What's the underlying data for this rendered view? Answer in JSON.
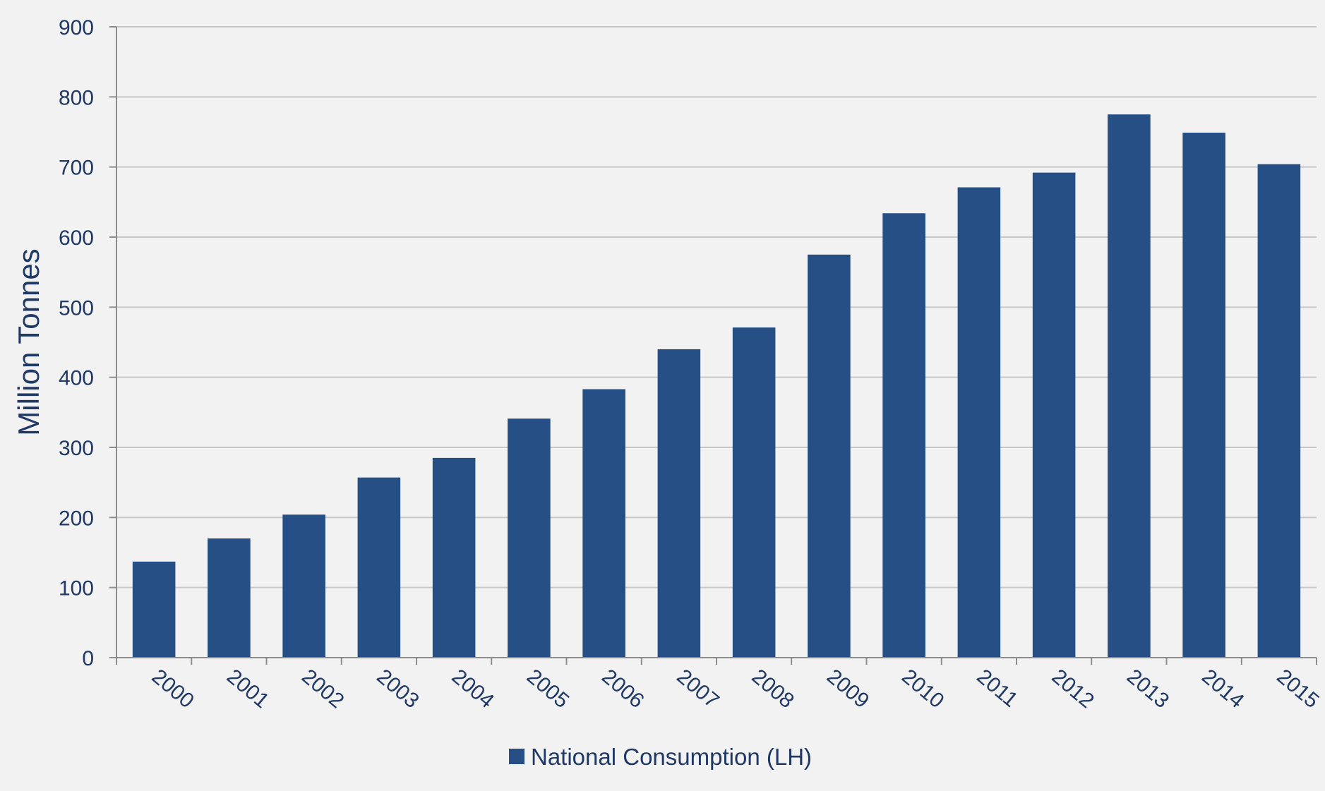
{
  "chart_data": {
    "type": "bar",
    "title": "",
    "xlabel": "",
    "ylabel": "Million Tonnes",
    "ylim": [
      0,
      900
    ],
    "yticks": [
      0,
      100,
      200,
      300,
      400,
      500,
      600,
      700,
      800,
      900
    ],
    "categories": [
      "2000",
      "2001",
      "2002",
      "2003",
      "2004",
      "2005",
      "2006",
      "2007",
      "2008",
      "2009",
      "2010",
      "2011",
      "2012",
      "2013",
      "2014",
      "2015"
    ],
    "series": [
      {
        "name": "National Consumption (LH)",
        "values": [
          137,
          170,
          204,
          257,
          285,
          341,
          383,
          440,
          471,
          575,
          634,
          671,
          692,
          775,
          749,
          704
        ],
        "color": "#264f86"
      }
    ],
    "grid": true,
    "legend": "bottom-center"
  },
  "colors": {
    "background": "#f2f2f2",
    "grid": "#c8c8c8",
    "axis": "#8c8c8c",
    "text": "#1f3864"
  }
}
